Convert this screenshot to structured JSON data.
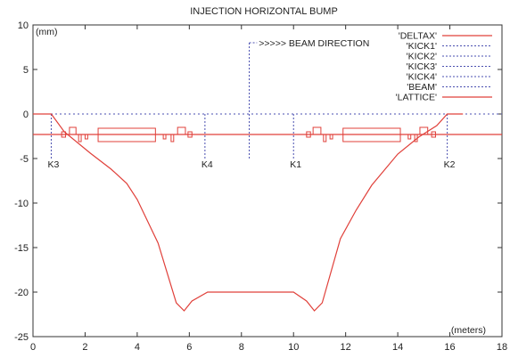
{
  "chart_data": {
    "type": "line",
    "title": "INJECTION HORIZONTAL BUMP",
    "ylabel_unit": "(mm)",
    "xlabel_unit": "(meters)",
    "xlim": [
      0,
      18
    ],
    "ylim": [
      -25,
      10
    ],
    "xticks": [
      0,
      2,
      4,
      6,
      8,
      10,
      12,
      14,
      16,
      18
    ],
    "yticks": [
      -25,
      -20,
      -15,
      -10,
      -5,
      0,
      5,
      10
    ],
    "grid": false,
    "legend_position": "top-right",
    "beam_direction_label": ">>>>> BEAM DIRECTION",
    "beam_line": {
      "x": 8.3,
      "y_from": -5,
      "y_to": 8,
      "arrow_to_x": 8.6
    },
    "series": [
      {
        "name": "'DELTAX'",
        "style": "solid",
        "color": "#e0403a",
        "x": [
          0,
          0.7,
          1.2,
          2.2,
          3.0,
          3.6,
          4.0,
          4.8,
          5.5,
          5.8,
          6.1,
          6.7,
          7.5,
          8.3,
          9.2,
          10.0,
          10.5,
          10.8,
          11.1,
          11.8,
          12.4,
          13.0,
          14.0,
          14.8,
          15.5,
          15.9,
          16.5
        ],
        "y": [
          0,
          0,
          -2.0,
          -4.4,
          -6.2,
          -7.8,
          -9.6,
          -14.5,
          -21.2,
          -22.1,
          -21.0,
          -20.0,
          -20.0,
          -20.0,
          -20.0,
          -20.0,
          -21.0,
          -22.1,
          -21.2,
          -14.0,
          -10.8,
          -8.0,
          -4.5,
          -2.6,
          -1.3,
          0,
          0
        ]
      },
      {
        "name": "'KICK1'",
        "style": "dotted",
        "color": "#4a4fb0",
        "x": 10.0,
        "y_from": 0,
        "y_to": -5
      },
      {
        "name": "'KICK2'",
        "style": "dotted",
        "color": "#4a4fb0",
        "x": 15.9,
        "y_from": 0,
        "y_to": -5
      },
      {
        "name": "'KICK3'",
        "style": "dotted",
        "color": "#4a4fb0",
        "x": 0.7,
        "y_from": 0,
        "y_to": -5
      },
      {
        "name": "'KICK4'",
        "style": "dotted",
        "color": "#4a4fb0",
        "x": 6.6,
        "y_from": 0,
        "y_to": -5
      },
      {
        "name": "'BEAM'",
        "style": "dotted",
        "color": "#4a4fb0",
        "y": 0
      },
      {
        "name": "'LATTICE'",
        "style": "solid",
        "color": "#e0403a",
        "y": -2.3
      }
    ],
    "kick_labels": [
      {
        "text": "K3",
        "x": 0.7
      },
      {
        "text": "K4",
        "x": 6.6
      },
      {
        "text": "K1",
        "x": 10.0
      },
      {
        "text": "K2",
        "x": 15.9
      }
    ],
    "lattice_elements": [
      {
        "x0": 1.1,
        "x1": 1.25,
        "top": -2.0,
        "bottom": -2.6
      },
      {
        "x0": 1.4,
        "x1": 1.65,
        "top": -1.5,
        "bottom": -2.3
      },
      {
        "x0": 1.75,
        "x1": 1.85,
        "top": -2.3,
        "bottom": -3.1
      },
      {
        "x0": 2.0,
        "x1": 2.1,
        "top": -2.3,
        "bottom": -2.8
      },
      {
        "x0": 2.5,
        "x1": 4.7,
        "top": -1.6,
        "bottom": -3.1
      },
      {
        "x0": 5.0,
        "x1": 5.1,
        "top": -2.3,
        "bottom": -2.8
      },
      {
        "x0": 5.3,
        "x1": 5.4,
        "top": -2.3,
        "bottom": -3.1
      },
      {
        "x0": 5.55,
        "x1": 5.85,
        "top": -1.5,
        "bottom": -2.3
      },
      {
        "x0": 5.95,
        "x1": 6.1,
        "top": -2.0,
        "bottom": -2.6
      },
      {
        "x0": 10.5,
        "x1": 10.65,
        "top": -2.0,
        "bottom": -2.6
      },
      {
        "x0": 10.75,
        "x1": 11.05,
        "top": -1.5,
        "bottom": -2.3
      },
      {
        "x0": 11.15,
        "x1": 11.25,
        "top": -2.3,
        "bottom": -3.1
      },
      {
        "x0": 11.4,
        "x1": 11.5,
        "top": -2.3,
        "bottom": -2.8
      },
      {
        "x0": 11.9,
        "x1": 14.1,
        "top": -1.6,
        "bottom": -3.1
      },
      {
        "x0": 14.4,
        "x1": 14.5,
        "top": -2.3,
        "bottom": -2.8
      },
      {
        "x0": 14.65,
        "x1": 14.75,
        "top": -2.3,
        "bottom": -3.1
      },
      {
        "x0": 14.85,
        "x1": 15.15,
        "top": -1.5,
        "bottom": -2.3
      },
      {
        "x0": 15.3,
        "x1": 15.45,
        "top": -2.0,
        "bottom": -2.6
      }
    ]
  }
}
